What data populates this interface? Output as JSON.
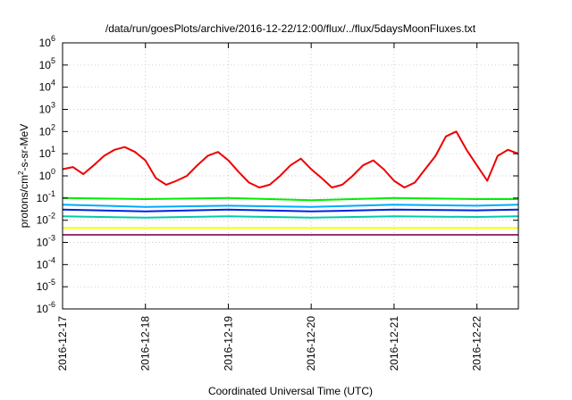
{
  "chart_data": {
    "type": "line",
    "title": "/data/run/goesPlots/archive/2016-12-22/12:00/flux/../flux/5daysMoonFluxes.txt",
    "xlabel": "Coordinated Universal Time (UTC)",
    "ylabel": "protons/cm2-s-sr-MeV",
    "ylabel_parts": {
      "prefix": "protons/cm",
      "sup": "2",
      "suffix": "-s-sr-MeV"
    },
    "yscale": "log",
    "ylim": [
      1e-06,
      1000000.0
    ],
    "yticks": [
      {
        "base": "10",
        "exp": "-6",
        "value": 1e-06
      },
      {
        "base": "10",
        "exp": "-5",
        "value": 1e-05
      },
      {
        "base": "10",
        "exp": "-4",
        "value": 0.0001
      },
      {
        "base": "10",
        "exp": "-3",
        "value": 0.001
      },
      {
        "base": "10",
        "exp": "-2",
        "value": 0.01
      },
      {
        "base": "10",
        "exp": "-1",
        "value": 0.1
      },
      {
        "base": "10",
        "exp": "0",
        "value": 1
      },
      {
        "base": "10",
        "exp": "1",
        "value": 10
      },
      {
        "base": "10",
        "exp": "2",
        "value": 100
      },
      {
        "base": "10",
        "exp": "3",
        "value": 1000.0
      },
      {
        "base": "10",
        "exp": "4",
        "value": 10000.0
      },
      {
        "base": "10",
        "exp": "5",
        "value": 100000.0
      },
      {
        "base": "10",
        "exp": "6",
        "value": 1000000.0
      }
    ],
    "xlim": [
      "2016-12-17T00:00",
      "2016-12-22T12:00"
    ],
    "xticks": [
      "2016-12-17",
      "2016-12-18",
      "2016-12-19",
      "2016-12-20",
      "2016-12-21",
      "2016-12-22"
    ],
    "grid": true,
    "legend": "none",
    "series": [
      {
        "color": "#ee0000",
        "x": [
          "2016-12-17T00:00",
          "2016-12-17T03:00",
          "2016-12-17T06:00",
          "2016-12-17T09:00",
          "2016-12-17T12:00",
          "2016-12-17T15:00",
          "2016-12-17T18:00",
          "2016-12-17T21:00",
          "2016-12-18T00:00",
          "2016-12-18T03:00",
          "2016-12-18T06:00",
          "2016-12-18T09:00",
          "2016-12-18T12:00",
          "2016-12-18T15:00",
          "2016-12-18T18:00",
          "2016-12-18T21:00",
          "2016-12-19T00:00",
          "2016-12-19T03:00",
          "2016-12-19T06:00",
          "2016-12-19T09:00",
          "2016-12-19T12:00",
          "2016-12-19T15:00",
          "2016-12-19T18:00",
          "2016-12-19T21:00",
          "2016-12-20T00:00",
          "2016-12-20T03:00",
          "2016-12-20T06:00",
          "2016-12-20T09:00",
          "2016-12-20T12:00",
          "2016-12-20T15:00",
          "2016-12-20T18:00",
          "2016-12-20T21:00",
          "2016-12-21T00:00",
          "2016-12-21T03:00",
          "2016-12-21T06:00",
          "2016-12-21T09:00",
          "2016-12-21T12:00",
          "2016-12-21T15:00",
          "2016-12-21T18:00",
          "2016-12-21T21:00",
          "2016-12-22T00:00",
          "2016-12-22T03:00",
          "2016-12-22T06:00",
          "2016-12-22T09:00",
          "2016-12-22T12:00"
        ],
        "values": [
          2.0,
          2.5,
          1.2,
          3.0,
          8.0,
          15,
          20,
          12,
          5,
          0.8,
          0.4,
          0.6,
          1.0,
          3,
          8,
          12,
          5,
          1.5,
          0.5,
          0.3,
          0.4,
          1.0,
          3,
          6,
          2,
          0.8,
          0.3,
          0.4,
          1.0,
          3,
          5,
          2,
          0.6,
          0.3,
          0.5,
          2,
          8,
          60,
          100,
          15,
          3,
          0.6,
          8,
          15,
          10
        ]
      },
      {
        "color": "#00ee00",
        "x": [
          "2016-12-17T00:00",
          "2016-12-18T00:00",
          "2016-12-19T00:00",
          "2016-12-20T00:00",
          "2016-12-21T00:00",
          "2016-12-22T00:00",
          "2016-12-22T12:00"
        ],
        "values": [
          0.1,
          0.09,
          0.1,
          0.08,
          0.1,
          0.09,
          0.09
        ]
      },
      {
        "color": "#00aaff",
        "x": [
          "2016-12-17T00:00",
          "2016-12-18T00:00",
          "2016-12-19T00:00",
          "2016-12-20T00:00",
          "2016-12-21T00:00",
          "2016-12-22T00:00",
          "2016-12-22T12:00"
        ],
        "values": [
          0.05,
          0.04,
          0.045,
          0.04,
          0.05,
          0.045,
          0.05
        ]
      },
      {
        "color": "#0022dd",
        "x": [
          "2016-12-17T00:00",
          "2016-12-18T00:00",
          "2016-12-19T00:00",
          "2016-12-20T00:00",
          "2016-12-21T00:00",
          "2016-12-22T00:00",
          "2016-12-22T12:00"
        ],
        "values": [
          0.03,
          0.025,
          0.03,
          0.025,
          0.03,
          0.028,
          0.03
        ]
      },
      {
        "color": "#00ccaa",
        "x": [
          "2016-12-17T00:00",
          "2016-12-18T00:00",
          "2016-12-19T00:00",
          "2016-12-20T00:00",
          "2016-12-21T00:00",
          "2016-12-22T00:00",
          "2016-12-22T12:00"
        ],
        "values": [
          0.015,
          0.013,
          0.015,
          0.013,
          0.015,
          0.014,
          0.015
        ]
      },
      {
        "color": "#ffff00",
        "x": [
          "2016-12-17T00:00",
          "2016-12-18T00:00",
          "2016-12-19T00:00",
          "2016-12-20T00:00",
          "2016-12-21T00:00",
          "2016-12-22T00:00",
          "2016-12-22T12:00"
        ],
        "values": [
          0.0045,
          0.0045,
          0.0045,
          0.0045,
          0.0045,
          0.0045,
          0.0045
        ]
      },
      {
        "color": "#993377",
        "x": [
          "2016-12-17T00:00",
          "2016-12-18T00:00",
          "2016-12-19T00:00",
          "2016-12-20T00:00",
          "2016-12-21T00:00",
          "2016-12-22T00:00",
          "2016-12-22T12:00"
        ],
        "values": [
          0.0022,
          0.0022,
          0.0022,
          0.0022,
          0.0022,
          0.0022,
          0.0022
        ]
      }
    ]
  }
}
